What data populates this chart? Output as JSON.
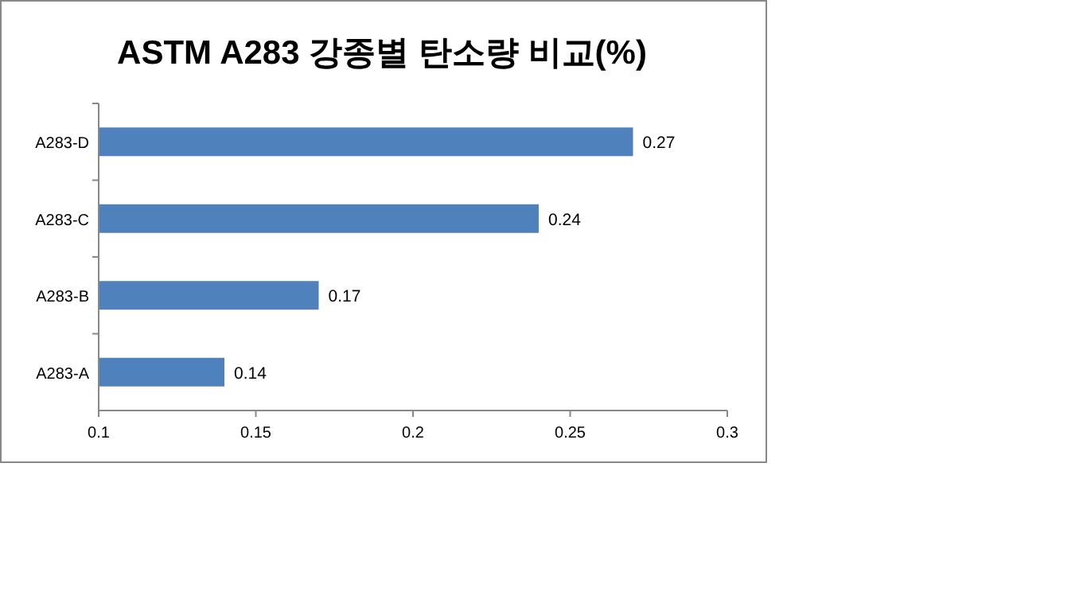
{
  "chart_data": {
    "type": "bar",
    "orientation": "horizontal",
    "title": "ASTM  A283 강종별 탄소량 비교(%)",
    "categories": [
      "A283-D",
      "A283-C",
      "A283-B",
      "A283-A"
    ],
    "values": [
      0.27,
      0.24,
      0.17,
      0.14
    ],
    "color": "#4f81bd",
    "xlim": [
      0.1,
      0.3
    ],
    "xticks": [
      0.1,
      0.15,
      0.2,
      0.25,
      0.3
    ],
    "data_labels": true
  }
}
